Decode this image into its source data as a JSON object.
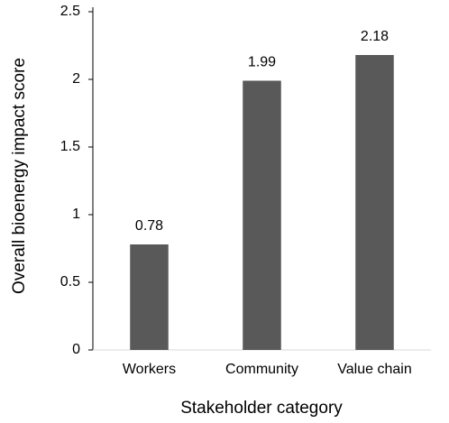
{
  "chart_data": {
    "type": "bar",
    "x_label": "Stakeholder category",
    "y_label": "Overall bioenergy impact score",
    "categories": [
      "Workers",
      "Community",
      "Value chain"
    ],
    "values": [
      0.78,
      1.99,
      2.18
    ],
    "color": "#595959",
    "ylim": [
      0,
      2.5
    ],
    "yticks": [
      0,
      0.5,
      1,
      1.5,
      2,
      2.5
    ],
    "grid": false
  }
}
